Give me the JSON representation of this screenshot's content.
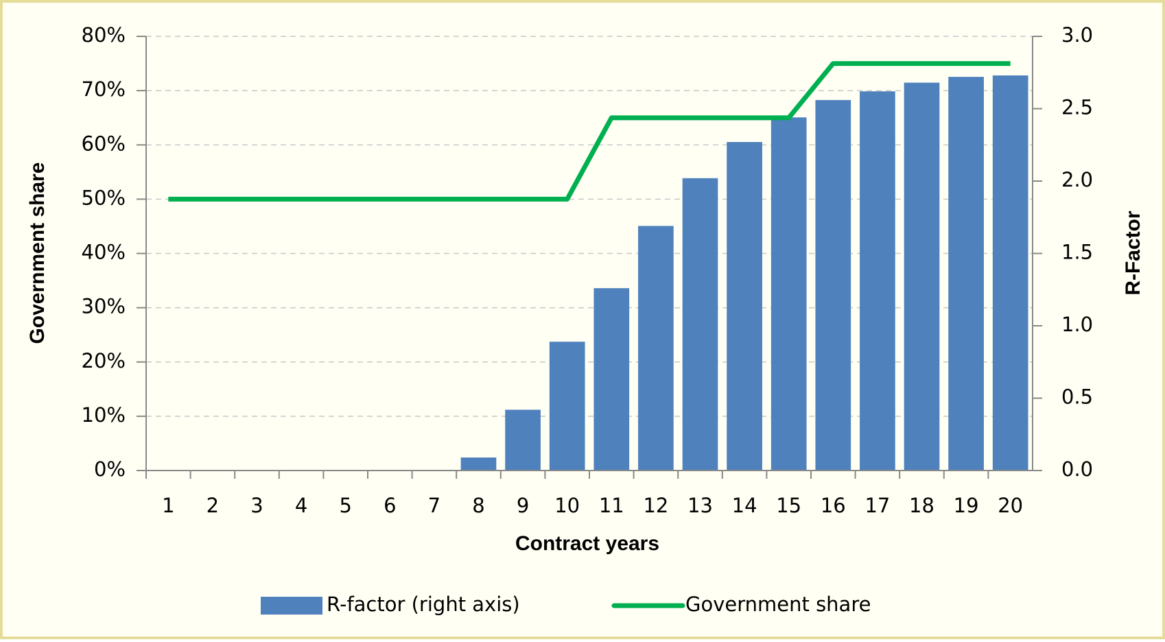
{
  "chart_data": {
    "type": "combo",
    "x_label": "Contract years",
    "y_label": "Government share",
    "y2_label": "R-Factor",
    "categories": [
      "1",
      "2",
      "3",
      "4",
      "5",
      "6",
      "7",
      "8",
      "9",
      "10",
      "11",
      "12",
      "13",
      "14",
      "15",
      "16",
      "17",
      "18",
      "19",
      "20"
    ],
    "series": [
      {
        "name": "R-factor (right axis)",
        "type": "bar",
        "axis": "y2",
        "color": "#4f81bd",
        "values": [
          0,
          0,
          0,
          0,
          0,
          0,
          0,
          0.09,
          0.42,
          0.89,
          1.26,
          1.69,
          2.02,
          2.27,
          2.44,
          2.56,
          2.62,
          2.68,
          2.72,
          2.73
        ]
      },
      {
        "name": "Government share",
        "type": "line",
        "color": "#00b050",
        "values": [
          50,
          50,
          50,
          50,
          50,
          50,
          50,
          50,
          50,
          50,
          65,
          65,
          65,
          65,
          65,
          75,
          75,
          75,
          75,
          75
        ]
      }
    ],
    "ylim": [
      0,
      80
    ],
    "yticks": [
      {
        "value": 0,
        "label": "0%"
      },
      {
        "value": 10,
        "label": "10%"
      },
      {
        "value": 20,
        "label": "20%"
      },
      {
        "value": 30,
        "label": "30%"
      },
      {
        "value": 40,
        "label": "40%"
      },
      {
        "value": 50,
        "label": "50%"
      },
      {
        "value": 60,
        "label": "60%"
      },
      {
        "value": 70,
        "label": "70%"
      },
      {
        "value": 80,
        "label": "80%"
      }
    ],
    "y2lim": [
      0,
      3
    ],
    "y2ticks": [
      {
        "value": 0,
        "label": "0.0"
      },
      {
        "value": 0.5,
        "label": "0.5"
      },
      {
        "value": 1,
        "label": "1.0"
      },
      {
        "value": 1.5,
        "label": "1.5"
      },
      {
        "value": 2,
        "label": "2.0"
      },
      {
        "value": 2.5,
        "label": "2.5"
      },
      {
        "value": 3,
        "label": "3.0"
      }
    ],
    "grid": true,
    "legend": "bottom"
  }
}
